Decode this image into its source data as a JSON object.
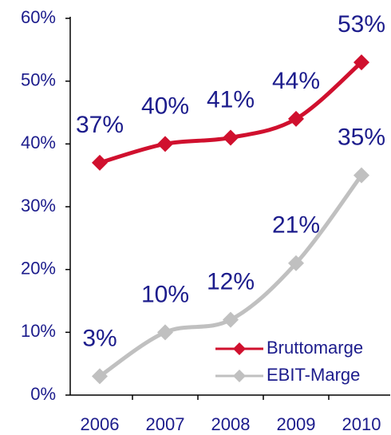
{
  "chart_data": {
    "type": "line",
    "categories": [
      "2006",
      "2007",
      "2008",
      "2009",
      "2010"
    ],
    "series": [
      {
        "name": "Bruttomarge",
        "color": "#d0102e",
        "values": [
          37,
          40,
          41,
          44,
          53
        ],
        "value_labels": [
          "37%",
          "40%",
          "41%",
          "44%",
          "53%"
        ]
      },
      {
        "name": "EBIT-Marge",
        "color": "#c0c0c0",
        "values": [
          3,
          10,
          12,
          21,
          35
        ],
        "value_labels": [
          "3%",
          "10%",
          "12%",
          "21%",
          "35%"
        ]
      }
    ],
    "ylim": [
      0,
      60
    ],
    "yticks": [
      {
        "value": 0,
        "label": "0%"
      },
      {
        "value": 10,
        "label": "10%"
      },
      {
        "value": 20,
        "label": "20%"
      },
      {
        "value": 30,
        "label": "30%"
      },
      {
        "value": 40,
        "label": "40%"
      },
      {
        "value": 50,
        "label": "50%"
      },
      {
        "value": 60,
        "label": "60%"
      }
    ],
    "legend": "lower right"
  }
}
